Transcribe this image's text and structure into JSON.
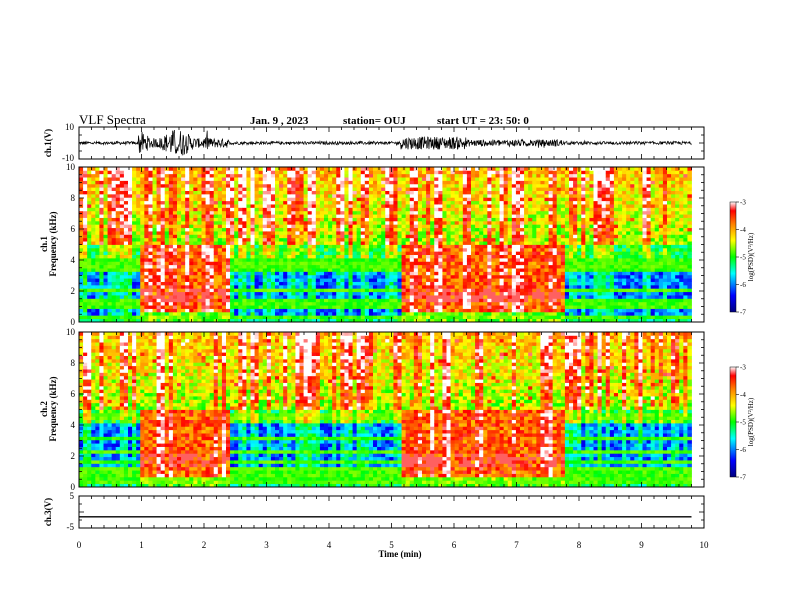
{
  "header": {
    "title": "VLF Spectra",
    "date": "Jan. 9 , 2023",
    "station": "station= OUJ",
    "start": "start UT = 23: 50: 0"
  },
  "chart_data": [
    {
      "type": "line",
      "name": "waveform-ch1",
      "ylabel": "ch.1(V)",
      "ylim": [
        -10,
        10
      ],
      "yticks": [
        "10",
        "-10"
      ],
      "xlim": [
        0,
        10
      ]
    },
    {
      "type": "heatmap",
      "name": "spectrogram-ch1",
      "ylabel_main": "Frequency (kHz)",
      "ylabel_channel": "ch.1",
      "ylim": [
        0,
        10
      ],
      "yticks": [
        "0",
        "2",
        "4",
        "6",
        "8",
        "10"
      ],
      "xlim": [
        0,
        10
      ],
      "colorbar": {
        "label": "log(PSD)(V²/Hz)",
        "range": [
          -7,
          -3
        ],
        "ticks": [
          "-3",
          "-4",
          "-5",
          "-6",
          "-7"
        ]
      },
      "segments": [
        {
          "start": 0.0,
          "end": 0.95,
          "level": "background"
        },
        {
          "start": 0.95,
          "end": 2.4,
          "level": "elevated"
        },
        {
          "start": 2.4,
          "end": 5.15,
          "level": "background"
        },
        {
          "start": 5.15,
          "end": 7.75,
          "level": "elevated"
        },
        {
          "start": 7.75,
          "end": 9.8,
          "level": "background"
        }
      ]
    },
    {
      "type": "heatmap",
      "name": "spectrogram-ch2",
      "ylabel_main": "Frequency (kHz)",
      "ylabel_channel": "ch.2",
      "ylim": [
        0,
        10
      ],
      "yticks": [
        "0",
        "2",
        "4",
        "6",
        "8",
        "10"
      ],
      "xlim": [
        0,
        10
      ],
      "colorbar": {
        "label": "log(PSD)(V²/Hz)",
        "range": [
          -7,
          -3
        ],
        "ticks": [
          "-3",
          "-4",
          "-5",
          "-6",
          "-7"
        ]
      },
      "segments": [
        {
          "start": 0.0,
          "end": 0.95,
          "level": "background"
        },
        {
          "start": 0.95,
          "end": 2.4,
          "level": "elevated"
        },
        {
          "start": 2.4,
          "end": 5.15,
          "level": "background"
        },
        {
          "start": 5.15,
          "end": 7.75,
          "level": "elevated"
        },
        {
          "start": 7.75,
          "end": 9.8,
          "level": "background"
        }
      ]
    },
    {
      "type": "line",
      "name": "waveform-ch3",
      "ylabel": "ch.3(V)",
      "ylim": [
        -5,
        5
      ],
      "yticks": [
        "5",
        "-5"
      ],
      "value": -1.5,
      "xlim": [
        0,
        10
      ]
    }
  ],
  "xaxis": {
    "label": "Time (min)",
    "ticks": [
      "0",
      "1",
      "2",
      "3",
      "4",
      "5",
      "6",
      "7",
      "8",
      "9",
      "10"
    ],
    "data_end": 9.8
  },
  "colors": {
    "scale": [
      "#00007f",
      "#0000ff",
      "#00ffff",
      "#00ff00",
      "#ffff00",
      "#ff7f00",
      "#ff0000",
      "#ffffff"
    ]
  }
}
